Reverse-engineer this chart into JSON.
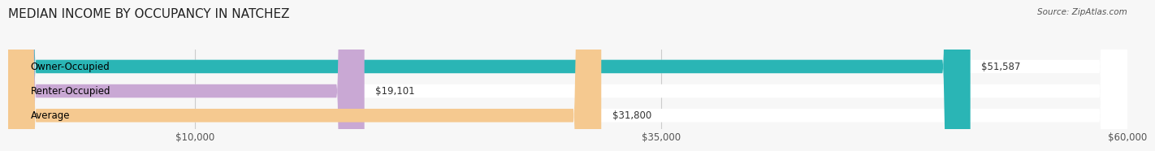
{
  "title": "MEDIAN INCOME BY OCCUPANCY IN NATCHEZ",
  "source": "Source: ZipAtlas.com",
  "categories": [
    "Owner-Occupied",
    "Renter-Occupied",
    "Average"
  ],
  "values": [
    51587,
    19101,
    31800
  ],
  "bar_colors": [
    "#2ab5b5",
    "#c9a8d4",
    "#f5c990"
  ],
  "value_labels": [
    "$51,587",
    "$19,101",
    "$31,800"
  ],
  "xlim": [
    0,
    60000
  ],
  "xticks": [
    10000,
    35000,
    60000
  ],
  "xtick_labels": [
    "$10,000",
    "$35,000",
    "$60,000"
  ],
  "title_fontsize": 11,
  "label_fontsize": 8.5,
  "bar_height": 0.55,
  "background_color": "#f7f7f7"
}
